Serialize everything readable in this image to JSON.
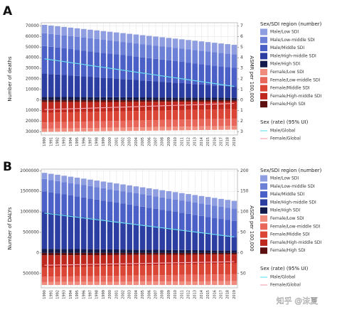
{
  "chart_data": [
    {
      "type": "stacked_bar_line",
      "panel": "A",
      "ylabel": "Number of deaths",
      "y2label": "ASMR per 100,000",
      "legend_title": "Sex/SDI region (number)",
      "line_legend_title": "Sex (rate) (95% UI)",
      "grid": true,
      "categories": [
        "1990",
        "1991",
        "1992",
        "1993",
        "1994",
        "1995",
        "1996",
        "1997",
        "1998",
        "1999",
        "2000",
        "2001",
        "2002",
        "2003",
        "2004",
        "2005",
        "2006",
        "2007",
        "2008",
        "2009",
        "2010",
        "2011",
        "2012",
        "2013",
        "2014",
        "2015",
        "2016",
        "2017",
        "2018",
        "2019"
      ],
      "ylim": [
        -33000,
        73000
      ],
      "yticks": [
        70000,
        60000,
        50000,
        40000,
        30000,
        20000,
        10000,
        0,
        {
          "value": -10000,
          "label": "10000"
        },
        {
          "value": -20000,
          "label": "20000"
        },
        {
          "value": -30000,
          "label": "30000"
        }
      ],
      "y2lim": [
        -3.3,
        7.3
      ],
      "y2ticks": [
        7,
        6,
        5,
        4,
        3,
        2,
        1,
        0,
        {
          "value": -1,
          "label": "1"
        },
        {
          "value": -2,
          "label": "2"
        },
        {
          "value": -3,
          "label": "3"
        }
      ],
      "series": [
        {
          "name": "Male/Low SDI",
          "color": "#8e9ee0",
          "values": [
            8000,
            8030,
            8060,
            8090,
            8120,
            8150,
            8180,
            8210,
            8240,
            8270,
            8300,
            8330,
            8360,
            8390,
            8420,
            8450,
            8480,
            8510,
            8540,
            8570,
            8600,
            8630,
            8660,
            8690,
            8720,
            8750,
            8780,
            8810,
            8840,
            8870
          ]
        },
        {
          "name": "Male/Low-middle SDI",
          "color": "#6b80d6",
          "values": [
            12000,
            12030,
            12060,
            12090,
            12120,
            12150,
            12180,
            12210,
            12240,
            12270,
            12300,
            12330,
            12360,
            12390,
            12420,
            12450,
            12480,
            12510,
            12540,
            12570,
            12600,
            12630,
            12660,
            12690,
            12720,
            12750,
            12780,
            12810,
            12840,
            12870
          ]
        },
        {
          "name": "Male/Middle SDI",
          "color": "#4a60c6",
          "values": [
            26000,
            25720,
            25440,
            25160,
            24880,
            24600,
            24320,
            24040,
            23760,
            23480,
            23200,
            22920,
            22640,
            22360,
            22080,
            21800,
            21520,
            21240,
            20960,
            20680,
            20400,
            20120,
            19840,
            19560,
            19280,
            19000,
            18720,
            18440,
            18160,
            17880
          ]
        },
        {
          "name": "Male/High-middle SDI",
          "color": "#2c3ea2",
          "values": [
            22000,
            21600,
            21200,
            20800,
            20400,
            20000,
            19600,
            19200,
            18800,
            18400,
            18000,
            17600,
            17200,
            16800,
            16400,
            16000,
            15600,
            15200,
            14800,
            14400,
            14000,
            13600,
            13200,
            12800,
            12400,
            12000,
            11600,
            11200,
            10800,
            10400
          ]
        },
        {
          "name": "Male/High SDI",
          "color": "#151a4c",
          "values": [
            3000,
            2970,
            2940,
            2910,
            2880,
            2850,
            2820,
            2790,
            2760,
            2730,
            2700,
            2670,
            2640,
            2610,
            2580,
            2550,
            2520,
            2490,
            2460,
            2430,
            2400,
            2370,
            2340,
            2310,
            2280,
            2250,
            2220,
            2190,
            2160,
            2130
          ]
        },
        {
          "name": "Female/Low SDI",
          "color": "#f08c7e",
          "values": [
            -3000,
            -3020,
            -3040,
            -3060,
            -3080,
            -3100,
            -3120,
            -3140,
            -3160,
            -3180,
            -3200,
            -3220,
            -3240,
            -3260,
            -3280,
            -3300,
            -3320,
            -3340,
            -3360,
            -3380,
            -3400,
            -3420,
            -3440,
            -3460,
            -3480,
            -3500,
            -3520,
            -3540,
            -3560,
            -3580
          ]
        },
        {
          "name": "Female/Low-middle SDI",
          "color": "#e8675a",
          "values": [
            -6000,
            -6030,
            -6060,
            -6090,
            -6120,
            -6150,
            -6180,
            -6210,
            -6240,
            -6270,
            -6300,
            -6330,
            -6360,
            -6390,
            -6420,
            -6450,
            -6480,
            -6510,
            -6540,
            -6570,
            -6600,
            -6630,
            -6660,
            -6690,
            -6720,
            -6750,
            -6780,
            -6810,
            -6840,
            -6870
          ]
        },
        {
          "name": "Female/Middle SDI",
          "color": "#db4535",
          "values": [
            -9000,
            -9000,
            -9000,
            -9000,
            -9000,
            -9000,
            -9000,
            -9000,
            -9000,
            -9000,
            -9000,
            -9000,
            -9000,
            -9000,
            -9000,
            -9000,
            -9000,
            -9000,
            -9000,
            -9000,
            -9000,
            -9000,
            -9000,
            -9000,
            -9000,
            -9000,
            -9000,
            -9000,
            -9000,
            -9000
          ]
        },
        {
          "name": "Female/High-middle SDI",
          "color": "#bf281e",
          "values": [
            -10000,
            -9900,
            -9800,
            -9700,
            -9600,
            -9500,
            -9400,
            -9300,
            -9200,
            -9100,
            -9000,
            -8900,
            -8800,
            -8700,
            -8600,
            -8500,
            -8400,
            -8300,
            -8200,
            -8100,
            -8000,
            -7900,
            -7800,
            -7700,
            -7600,
            -7500,
            -7400,
            -7300,
            -7200,
            -7100
          ]
        },
        {
          "name": "Female/High SDI",
          "color": "#5e1010",
          "values": [
            -2000,
            -1980,
            -1960,
            -1940,
            -1920,
            -1900,
            -1880,
            -1860,
            -1840,
            -1820,
            -1800,
            -1780,
            -1760,
            -1740,
            -1720,
            -1700,
            -1680,
            -1660,
            -1640,
            -1620,
            -1600,
            -1580,
            -1560,
            -1540,
            -1520,
            -1500,
            -1480,
            -1460,
            -1440,
            -1420
          ]
        },
        {
          "name": "Male/Global",
          "color": "#6ee4f2",
          "axis": "y2",
          "values": [
            3.9,
            3.81,
            3.72,
            3.63,
            3.54,
            3.45,
            3.36,
            3.27,
            3.18,
            3.09,
            3.0,
            2.91,
            2.82,
            2.73,
            2.64,
            2.55,
            2.46,
            2.37,
            2.28,
            2.19,
            2.1,
            2.01,
            1.92,
            1.83,
            1.74,
            1.65,
            1.56,
            1.47,
            1.38,
            1.29
          ]
        },
        {
          "name": "Female/Global",
          "color": "#f7a6b4",
          "axis": "y2",
          "values": [
            -0.9,
            -0.88,
            -0.86,
            -0.84,
            -0.82,
            -0.8,
            -0.78,
            -0.76,
            -0.74,
            -0.72,
            -0.7,
            -0.68,
            -0.66,
            -0.64,
            -0.62,
            -0.6,
            -0.58,
            -0.56,
            -0.54,
            -0.52,
            -0.5,
            -0.48,
            -0.46,
            -0.44,
            -0.42,
            -0.4,
            -0.38,
            -0.36,
            -0.34,
            -0.32
          ]
        }
      ]
    },
    {
      "type": "stacked_bar_line",
      "panel": "B",
      "ylabel": "Number of DALYs",
      "y2label": "ASDR per 100,000",
      "legend_title": "Sex/SDI region (number)",
      "line_legend_title": "Sex (rate) (95% UI)",
      "grid": true,
      "categories": [
        "1990",
        "1991",
        "1992",
        "1993",
        "1994",
        "1995",
        "1996",
        "1997",
        "1998",
        "1999",
        "2000",
        "2001",
        "2002",
        "2003",
        "2004",
        "2005",
        "2006",
        "2007",
        "2008",
        "2009",
        "2010",
        "2011",
        "2012",
        "2013",
        "2014",
        "2015",
        "2016",
        "2017",
        "2018",
        "2019"
      ],
      "ylim": [
        -850000,
        2040000
      ],
      "yticks": [
        2000000,
        1500000,
        1000000,
        500000,
        0,
        {
          "value": -500000,
          "label": "500000"
        }
      ],
      "y2lim": [
        -85,
        204
      ],
      "y2ticks": [
        200,
        150,
        100,
        50,
        0,
        {
          "value": -50,
          "label": "50"
        }
      ],
      "series": [
        {
          "name": "Male/Low SDI",
          "color": "#8e9ee0",
          "values": [
            150000,
            151400,
            152800,
            154200,
            155600,
            157000,
            158400,
            159800,
            161200,
            162600,
            164000,
            165400,
            166800,
            168200,
            169600,
            171000,
            172400,
            173800,
            175200,
            176600,
            178000,
            179400,
            180800,
            182200,
            183600,
            185000,
            186400,
            187800,
            189200,
            190600
          ]
        },
        {
          "name": "Male/Low-middle SDI",
          "color": "#6b80d6",
          "values": [
            300000,
            300000,
            300000,
            300000,
            300000,
            300000,
            300000,
            300000,
            300000,
            300000,
            300000,
            300000,
            300000,
            300000,
            300000,
            300000,
            300000,
            300000,
            300000,
            300000,
            300000,
            300000,
            300000,
            300000,
            300000,
            300000,
            300000,
            300000,
            300000,
            300000
          ]
        },
        {
          "name": "Male/Middle SDI",
          "color": "#4a60c6",
          "values": [
            500000,
            496500,
            493000,
            489500,
            486000,
            482500,
            479000,
            475500,
            472000,
            468500,
            465000,
            461500,
            458000,
            454500,
            451000,
            447500,
            444000,
            440500,
            437000,
            433500,
            430000,
            426500,
            423000,
            419500,
            416000,
            412500,
            409000,
            405500,
            402000,
            398500
          ]
        },
        {
          "name": "Male/High-middle SDI",
          "color": "#2c3ea2",
          "values": [
            900000,
            880000,
            860000,
            840000,
            820000,
            800000,
            780000,
            760000,
            740000,
            720000,
            700000,
            680000,
            660000,
            640000,
            620000,
            600000,
            580000,
            560000,
            540000,
            520000,
            500000,
            480000,
            460000,
            440000,
            420000,
            400000,
            380000,
            360000,
            340000,
            320000
          ]
        },
        {
          "name": "Male/High SDI",
          "color": "#151a4c",
          "values": [
            100000,
            98600,
            97200,
            95800,
            94400,
            93000,
            91600,
            90200,
            88800,
            87400,
            86000,
            84600,
            83200,
            81800,
            80400,
            79000,
            77600,
            76200,
            74800,
            73400,
            72000,
            70600,
            69200,
            67800,
            66400,
            65000,
            63600,
            62200,
            60800,
            59400
          ]
        },
        {
          "name": "Female/Low SDI",
          "color": "#f08c7e",
          "values": [
            -70000,
            -70700,
            -71400,
            -72100,
            -72800,
            -73500,
            -74200,
            -74900,
            -75600,
            -76300,
            -77000,
            -77700,
            -78400,
            -79100,
            -79800,
            -80500,
            -81200,
            -81900,
            -82600,
            -83300,
            -84000,
            -84700,
            -85400,
            -86100,
            -86800,
            -87500,
            -88200,
            -88900,
            -89600,
            -90300
          ]
        },
        {
          "name": "Female/Low-middle SDI",
          "color": "#e8675a",
          "values": [
            -130000,
            -131400,
            -132800,
            -134200,
            -135600,
            -137000,
            -138400,
            -139800,
            -141200,
            -142600,
            -144000,
            -145400,
            -146800,
            -148200,
            -149600,
            -151000,
            -152400,
            -153800,
            -155200,
            -156600,
            -158000,
            -159400,
            -160800,
            -162200,
            -163600,
            -165000,
            -166400,
            -167800,
            -169200,
            -170600
          ]
        },
        {
          "name": "Female/Middle SDI",
          "color": "#db4535",
          "values": [
            -220000,
            -221400,
            -222800,
            -224200,
            -225600,
            -227000,
            -228400,
            -229800,
            -231200,
            -232600,
            -234000,
            -235400,
            -236800,
            -238200,
            -239600,
            -241000,
            -242400,
            -243800,
            -245200,
            -246600,
            -248000,
            -249400,
            -250800,
            -252200,
            -253600,
            -255000,
            -256400,
            -257800,
            -259200,
            -260600
          ]
        },
        {
          "name": "Female/High-middle SDI",
          "color": "#bf281e",
          "values": [
            -300000,
            -297200,
            -294400,
            -291600,
            -288800,
            -286000,
            -283200,
            -280400,
            -277600,
            -274800,
            -272000,
            -269200,
            -266400,
            -263600,
            -260800,
            -258000,
            -255200,
            -252400,
            -249600,
            -246800,
            -244000,
            -241200,
            -238400,
            -235600,
            -232800,
            -230000,
            -227200,
            -224400,
            -221600,
            -218800
          ]
        },
        {
          "name": "Female/High SDI",
          "color": "#5e1010",
          "values": [
            -60000,
            -59300,
            -58600,
            -57900,
            -57200,
            -56500,
            -55800,
            -55100,
            -54400,
            -53700,
            -53000,
            -52300,
            -51600,
            -50900,
            -50200,
            -49500,
            -48800,
            -48100,
            -47400,
            -46700,
            -46000,
            -45300,
            -44600,
            -43900,
            -43200,
            -42500,
            -41800,
            -41100,
            -40400,
            -39700
          ]
        },
        {
          "name": "Male/Global",
          "color": "#6ee4f2",
          "axis": "y2",
          "values": [
            97,
            95,
            93,
            91,
            89,
            87,
            85,
            83,
            81,
            79,
            77,
            75,
            73,
            71,
            69,
            67,
            65,
            63,
            61,
            59,
            57,
            55,
            53,
            51,
            49,
            47,
            45,
            43,
            41,
            39
          ]
        },
        {
          "name": "Female/Global",
          "color": "#f7a6b4",
          "axis": "y2",
          "values": [
            -30,
            -29.7,
            -29.4,
            -29.1,
            -28.8,
            -28.5,
            -28.2,
            -27.9,
            -27.6,
            -27.3,
            -27,
            -26.7,
            -26.4,
            -26.1,
            -25.8,
            -25.5,
            -25.2,
            -24.9,
            -24.6,
            -24.3,
            -24,
            -23.7,
            -23.4,
            -23.1,
            -22.8,
            -22.5,
            -22.2,
            -21.9,
            -21.6,
            -21.3
          ]
        }
      ]
    }
  ],
  "watermark": "知乎 @沫夏"
}
